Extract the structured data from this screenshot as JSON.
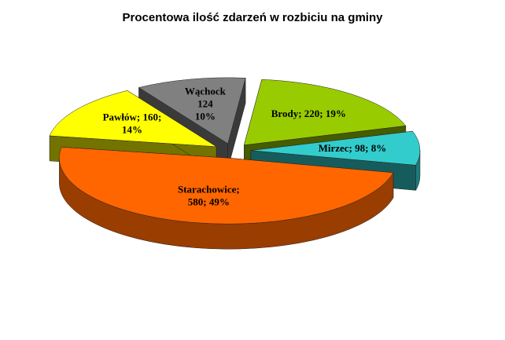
{
  "chart_data": {
    "type": "pie3d",
    "title": "Procentowa ilość zdarzeń w rozbiciu na gminy",
    "values": [
      220,
      98,
      580,
      160,
      124
    ],
    "value_labels": [
      [
        "Brody; 220; 19%"
      ],
      [
        "Mirzec; 98; 8%"
      ],
      [
        "Starachowice;",
        "580; 49%"
      ],
      [
        "Pawłów; 160;",
        "14%"
      ],
      [
        "Wąchock",
        "124",
        "10%"
      ]
    ],
    "colors": [
      "#99cc00",
      "#33cccc",
      "#ff6600",
      "#ffff00",
      "#808080"
    ]
  }
}
